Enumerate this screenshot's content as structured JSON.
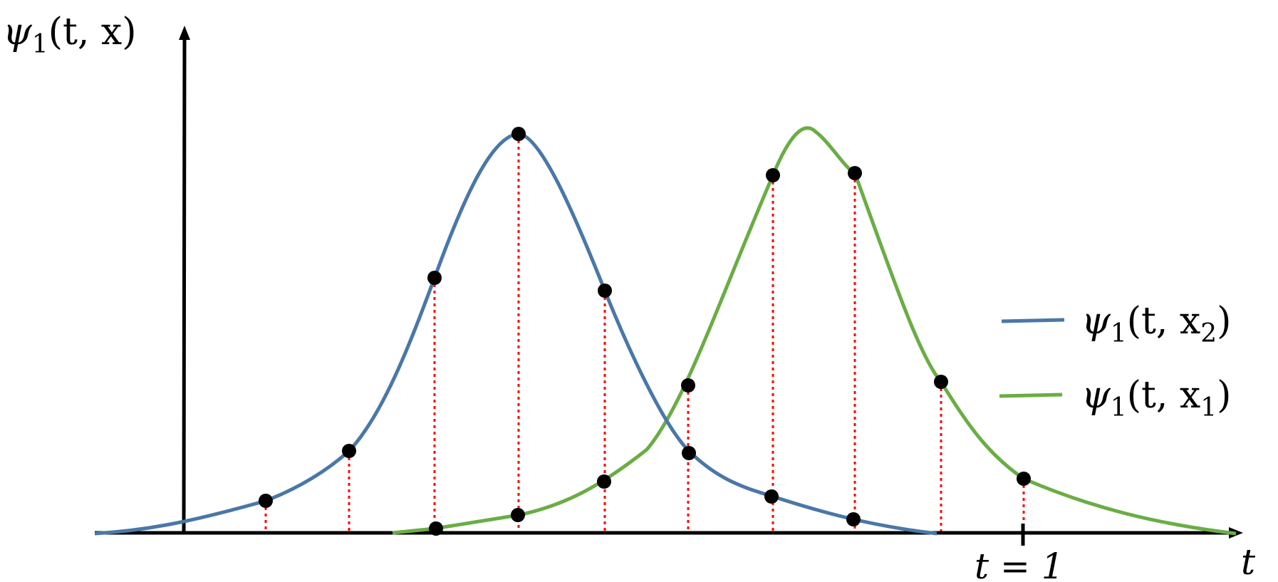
{
  "figure": {
    "y_axis_label": {
      "psi": "ψ",
      "sub": "1",
      "args": "(t, x)"
    },
    "x_axis_label": "t",
    "tick_label": "t = 1",
    "legend": [
      {
        "psi": "ψ",
        "sub": "1",
        "args_open": "(t, x",
        "args_sub": "2",
        "args_close": ")",
        "color": "#4a77a8"
      },
      {
        "psi": "ψ",
        "sub": "1",
        "args_open": "(t, x",
        "args_sub": "1",
        "args_close": ")",
        "color": "#6aad45"
      }
    ],
    "colors": {
      "axis": "#000000",
      "blue_curve": "#4a77a8",
      "green_curve": "#6aad45",
      "sample_line": "#ff0000",
      "sample_point": "#000000"
    }
  }
}
